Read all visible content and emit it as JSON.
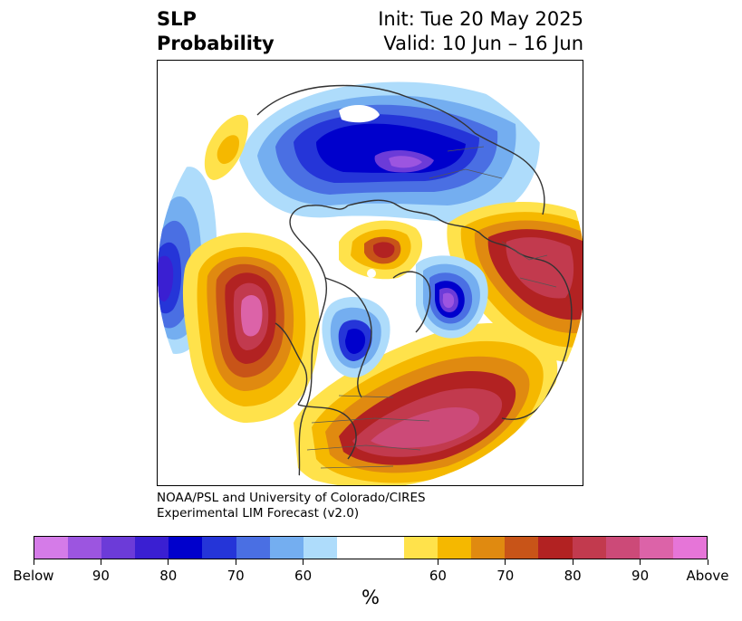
{
  "header": {
    "title_line1": "SLP",
    "title_line2": "Probability",
    "init": "Init: Tue 20 May 2025",
    "valid": "Valid: 10 Jun – 16 Jun"
  },
  "credit": {
    "line1": "NOAA/PSL and University of Colorado/CIRES",
    "line2": "Experimental LIM Forecast (v2.0)"
  },
  "colorbar": {
    "colors": [
      "#d57be8",
      "#9c55e0",
      "#6c3bd8",
      "#3a1fd2",
      "#0000cc",
      "#2535d8",
      "#4a6fe3",
      "#74aef0",
      "#aedcfb",
      "#ffffff",
      "#ffffff",
      "#ffe24b",
      "#f5b800",
      "#e08a10",
      "#c85418",
      "#b22222",
      "#c23a4e",
      "#cc4a78",
      "#dc63a8",
      "#e675d8"
    ],
    "tick_labels": [
      "Below",
      "90",
      "80",
      "70",
      "60",
      "60",
      "70",
      "80",
      "90",
      "Above"
    ],
    "unit": "%"
  },
  "legend_colors": {
    "below_ramp": [
      "#0000cc",
      "#2535d8",
      "#4a6fe3",
      "#74aef0",
      "#aedcfb"
    ],
    "above_ramp": [
      "#ffe24b",
      "#f5b800",
      "#e08a10",
      "#c85418",
      "#b22222",
      "#c23a4e",
      "#cc4a78",
      "#dc63a8"
    ]
  }
}
